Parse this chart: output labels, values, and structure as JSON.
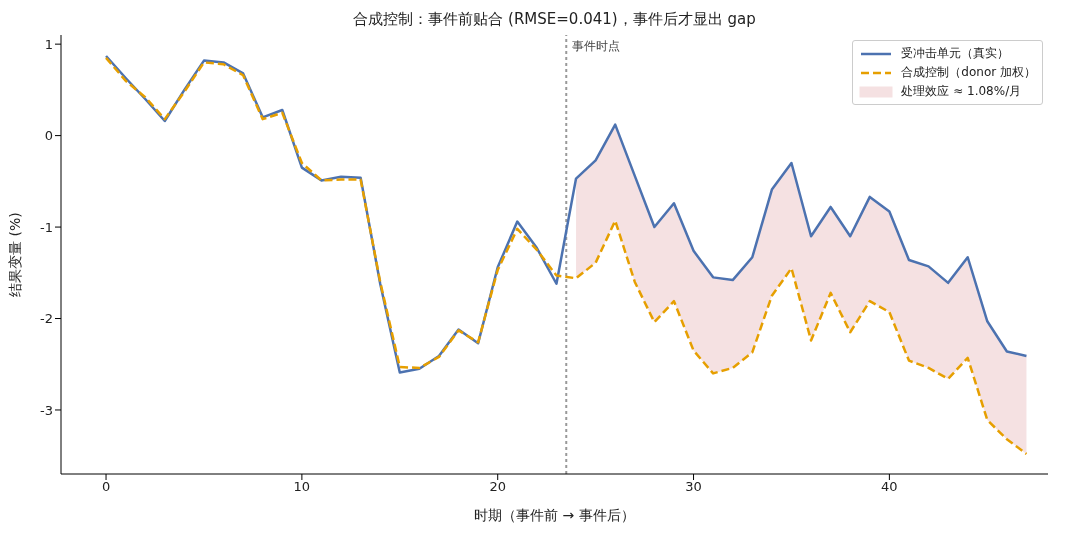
{
  "chart_data": {
    "type": "line",
    "title": "合成控制：事件前贴合 (RMSE=0.041)，事件后才显出 gap",
    "xlabel": "时期（事件前 → 事件后）",
    "ylabel": "结果变量 (%)",
    "x": [
      0,
      1,
      2,
      3,
      4,
      5,
      6,
      7,
      8,
      9,
      10,
      11,
      12,
      13,
      14,
      15,
      16,
      17,
      18,
      19,
      20,
      21,
      22,
      23,
      24,
      25,
      26,
      27,
      28,
      29,
      30,
      31,
      32,
      33,
      34,
      35,
      36,
      37,
      38,
      39,
      40,
      41,
      42,
      43,
      44,
      45,
      46,
      47
    ],
    "series": [
      {
        "name": "受冲击单元（真实）",
        "color": "#4c72b0",
        "line_style": "solid",
        "values": [
          0.87,
          0.63,
          0.4,
          0.16,
          0.5,
          0.82,
          0.8,
          0.68,
          0.2,
          0.28,
          -0.35,
          -0.49,
          -0.45,
          -0.46,
          -1.62,
          -2.59,
          -2.55,
          -2.41,
          -2.12,
          -2.27,
          -1.44,
          -0.94,
          -1.23,
          -1.62,
          -0.47,
          -0.27,
          0.12,
          -0.44,
          -1.0,
          -0.74,
          -1.26,
          -1.55,
          -1.58,
          -1.33,
          -0.59,
          -0.3,
          -1.1,
          -0.78,
          -1.1,
          -0.67,
          -0.83,
          -1.36,
          -1.43,
          -1.61,
          -1.33,
          -2.03,
          -2.36,
          -2.41
        ],
        "lower": [
          null,
          null,
          null,
          null,
          null,
          null,
          null,
          null,
          null,
          null,
          null,
          null,
          null,
          null,
          null,
          null,
          null,
          null,
          null,
          null,
          null,
          null,
          null,
          null,
          -1.56,
          -1.39,
          -0.93,
          -1.6,
          -2.04,
          -1.81,
          -2.35,
          -2.6,
          -2.54,
          -2.37,
          -1.75,
          -1.45,
          -2.24,
          -1.72,
          -2.15,
          -1.81,
          -1.93,
          -2.46,
          -2.54,
          -2.66,
          -2.43,
          -3.11,
          -3.32,
          -3.48
        ],
        "upper": [
          null,
          null,
          null,
          null,
          null,
          null,
          null,
          null,
          null,
          null,
          null,
          null,
          null,
          null,
          null,
          null,
          null,
          null,
          null,
          null,
          null,
          null,
          null,
          null,
          -0.47,
          -0.27,
          0.12,
          -0.44,
          -1.0,
          -0.74,
          -1.26,
          -1.55,
          -1.58,
          -1.33,
          -0.59,
          -0.3,
          -1.1,
          -0.78,
          -1.1,
          -0.67,
          -0.83,
          -1.36,
          -1.43,
          -1.61,
          -1.33,
          -2.03,
          -2.36,
          -2.41
        ]
      },
      {
        "name": "合成控制（donor 加权）",
        "color": "#e69f00",
        "line_style": "dashed",
        "values": [
          0.85,
          0.6,
          0.42,
          0.18,
          0.48,
          0.8,
          0.78,
          0.66,
          0.18,
          0.25,
          -0.3,
          -0.49,
          -0.48,
          -0.48,
          -1.6,
          -2.53,
          -2.54,
          -2.42,
          -2.13,
          -2.26,
          -1.47,
          -1.02,
          -1.25,
          -1.53,
          -1.56,
          -1.39,
          -0.93,
          -1.6,
          -2.04,
          -1.81,
          -2.35,
          -2.6,
          -2.54,
          -2.37,
          -1.75,
          -1.45,
          -2.24,
          -1.72,
          -2.15,
          -1.81,
          -1.93,
          -2.46,
          -2.54,
          -2.66,
          -2.43,
          -3.11,
          -3.32,
          -3.48
        ]
      }
    ],
    "annotations": [
      "处理效应 ≈ 1.08%/月"
    ],
    "ref_lines": [
      {
        "axis": "x",
        "value": 23.5,
        "label": "事件时点",
        "color": "#999999",
        "line_style": "dotted"
      }
    ],
    "xlim": [
      -2.3,
      48.1
    ],
    "xticks": [
      0,
      10,
      20,
      30,
      40
    ],
    "ylim": [
      -3.7,
      1.1
    ],
    "yticks": [
      -3,
      -2,
      -1,
      0,
      1
    ],
    "grid": false,
    "legend": "top right",
    "marker": "none"
  }
}
